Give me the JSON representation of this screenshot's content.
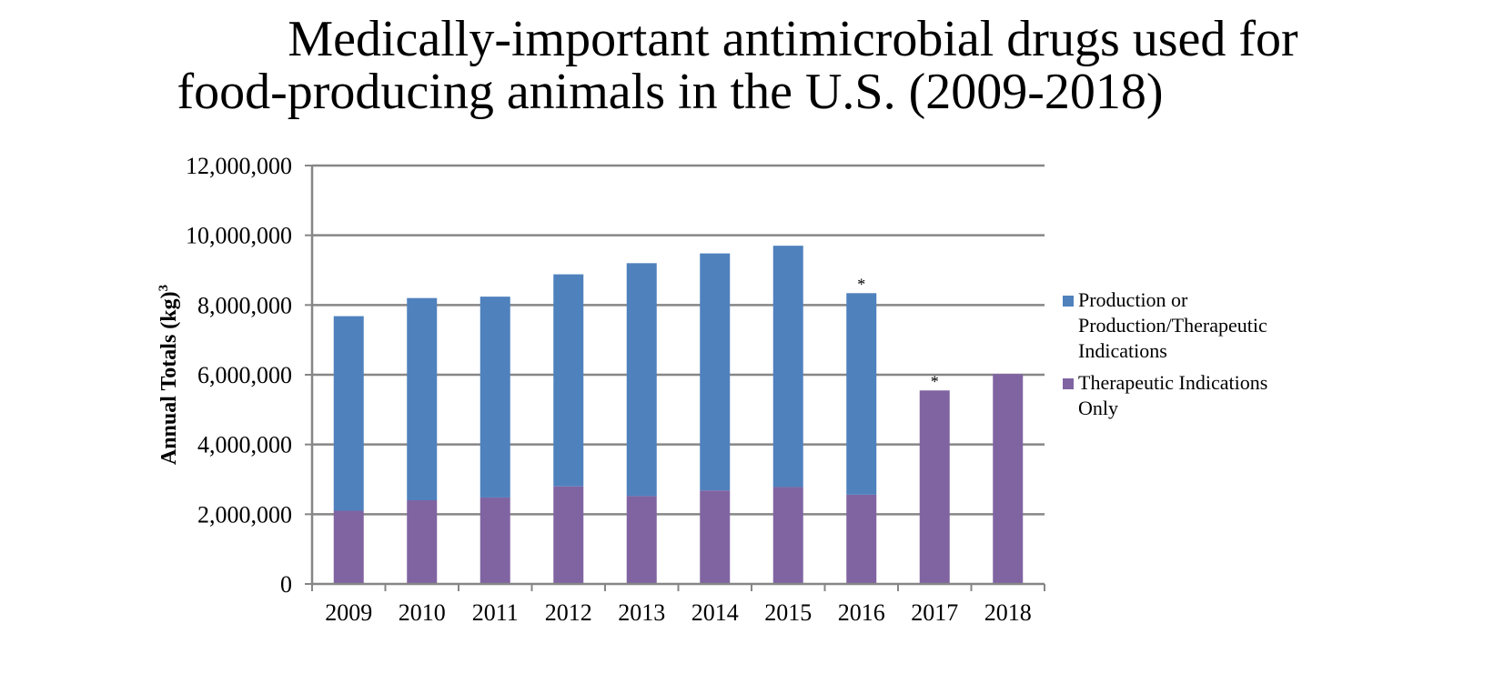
{
  "title_line1": "Medically-important antimicrobial drugs used for",
  "title_line2": "food-producing animals in the U.S. (2009-2018)",
  "chart_data": {
    "type": "bar",
    "stacked": true,
    "categories": [
      "2009",
      "2010",
      "2011",
      "2012",
      "2013",
      "2014",
      "2015",
      "2016",
      "2017",
      "2018"
    ],
    "series": [
      {
        "name": "Therapeutic Indications Only",
        "color": "#8064A2",
        "values": [
          2100000,
          2400000,
          2480000,
          2800000,
          2520000,
          2680000,
          2780000,
          2560000,
          5550000,
          6020000
        ]
      },
      {
        "name": "Production or Production/Therapeutic Indications",
        "color": "#4F81BD",
        "values": [
          5580000,
          5800000,
          5760000,
          6080000,
          6680000,
          6800000,
          6920000,
          5780000,
          0,
          0
        ]
      }
    ],
    "ylabel": "Annual Totals (kg)",
    "ylabel_superscript": "3",
    "ylim": [
      0,
      12000000
    ],
    "yticks": [
      0,
      2000000,
      4000000,
      6000000,
      8000000,
      10000000,
      12000000
    ],
    "ytick_labels": [
      "0",
      "2,000,000",
      "4,000,000",
      "6,000,000",
      "8,000,000",
      "10,000,000",
      "12,000,000"
    ],
    "annotations": [
      {
        "category": "2016",
        "text": "*"
      },
      {
        "category": "2017",
        "text": "*"
      }
    ],
    "grid": true,
    "legend_position": "right",
    "legend": [
      {
        "lines": [
          "Production or",
          "Production/Therapeutic",
          "Indications"
        ],
        "color": "#4F81BD"
      },
      {
        "lines": [
          "Therapeutic Indications",
          "Only"
        ],
        "color": "#8064A2"
      }
    ]
  }
}
